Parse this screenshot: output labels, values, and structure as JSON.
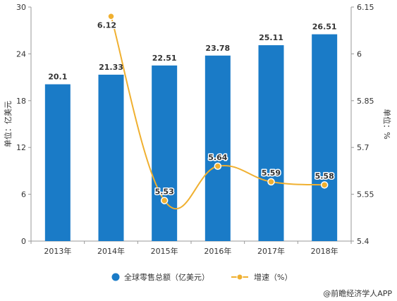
{
  "chart_data": {
    "type": "bar",
    "categories": [
      "2013年",
      "2014年",
      "2015年",
      "2016年",
      "2017年",
      "2018年"
    ],
    "series": [
      {
        "name": "全球零售总额（亿美元）",
        "type": "bar",
        "axis": "left",
        "values": [
          20.1,
          21.33,
          22.51,
          23.78,
          25.11,
          26.51
        ],
        "labels": [
          "20.1",
          "21.33",
          "22.51",
          "23.78",
          "25.11",
          "26.51"
        ],
        "color": "#1a7bc7"
      },
      {
        "name": "增速（%）",
        "type": "line",
        "axis": "right",
        "values": [
          null,
          6.12,
          5.53,
          5.64,
          5.59,
          5.58
        ],
        "labels": [
          "",
          "6.12",
          "5.53",
          "5.64",
          "5.59",
          "5.58"
        ],
        "color": "#f0b030"
      }
    ],
    "ylabel": "单位：亿美元",
    "y2label": "单位：%",
    "ylim": [
      0,
      30
    ],
    "yticks": [
      "0",
      "6",
      "12",
      "18",
      "24",
      "30"
    ],
    "y2lim": [
      5.4,
      6.15
    ],
    "y2ticks": [
      "5.4",
      "5.55",
      "5.7",
      "5.85",
      "6",
      "6.15"
    ],
    "legend_position": "bottom",
    "grid": false
  },
  "source": "@前瞻经济学人APP",
  "colors": {
    "bar": "#1a7bc7",
    "line": "#f0b030",
    "axis": "#999999",
    "text": "#333333"
  }
}
